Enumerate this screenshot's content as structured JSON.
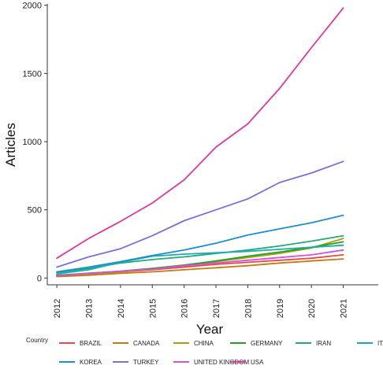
{
  "chart_data": {
    "type": "line",
    "title": "",
    "xlabel": "Year",
    "ylabel": "Articles",
    "x": [
      2012,
      2013,
      2014,
      2015,
      2016,
      2017,
      2018,
      2019,
      2020,
      2021
    ],
    "x_tick_labels": [
      "2012",
      "2013",
      "2014",
      "2015",
      "2016",
      "2017",
      "2018",
      "2019",
      "2020",
      "2021"
    ],
    "xlim": [
      2011.7,
      2022.1
    ],
    "y_ticks": [
      0,
      500,
      1000,
      1500,
      2000
    ],
    "y_tick_labels": [
      "0",
      "500",
      "1000",
      "1500",
      "2000"
    ],
    "ylim": [
      -50,
      2010
    ],
    "grid": false,
    "legend_title": "Country",
    "legend_position": "bottom",
    "series": [
      {
        "name": "BRAZIL",
        "color": "#e8474a",
        "values": [
          20,
          30,
          45,
          60,
          80,
          100,
          115,
          130,
          145,
          170
        ]
      },
      {
        "name": "CANADA",
        "color": "#c9780c",
        "values": [
          10,
          20,
          35,
          45,
          60,
          75,
          90,
          110,
          125,
          140
        ]
      },
      {
        "name": "CHINA",
        "color": "#a3a10c",
        "values": [
          15,
          30,
          45,
          65,
          90,
          120,
          150,
          180,
          220,
          290
        ]
      },
      {
        "name": "GERMANY",
        "color": "#26a020",
        "values": [
          20,
          35,
          50,
          70,
          95,
          125,
          160,
          190,
          225,
          265
        ]
      },
      {
        "name": "IRAN",
        "color": "#1fac78",
        "values": [
          40,
          70,
          110,
          135,
          155,
          180,
          205,
          235,
          270,
          310
        ]
      },
      {
        "name": "ITALY",
        "color": "#19adb1",
        "values": [
          30,
          60,
          115,
          160,
          175,
          185,
          195,
          210,
          225,
          240
        ]
      },
      {
        "name": "KOREA",
        "color": "#1b8ed6",
        "values": [
          45,
          80,
          120,
          165,
          205,
          255,
          315,
          360,
          405,
          460
        ]
      },
      {
        "name": "TURKEY",
        "color": "#7b6fd8",
        "values": [
          80,
          155,
          215,
          310,
          420,
          500,
          580,
          700,
          770,
          855
        ]
      },
      {
        "name": "UNITED KINGDOM",
        "color": "#d452d6",
        "values": [
          15,
          35,
          50,
          65,
          90,
          110,
          130,
          150,
          170,
          205
        ]
      },
      {
        "name": "USA",
        "color": "#e0389a",
        "values": [
          145,
          290,
          415,
          550,
          720,
          960,
          1130,
          1390,
          1690,
          1980
        ]
      }
    ]
  }
}
